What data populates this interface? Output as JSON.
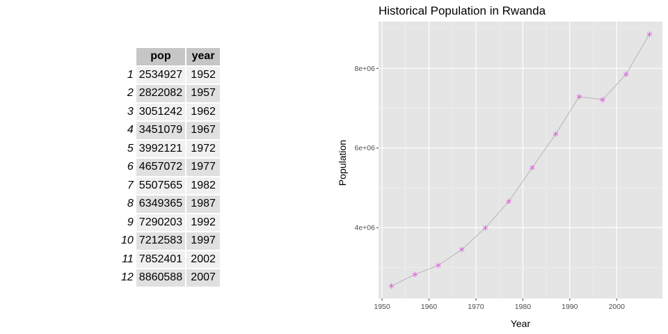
{
  "table": {
    "columns": [
      "pop",
      "year"
    ],
    "rows": [
      {
        "id": "1",
        "pop": "2534927",
        "year": "1952"
      },
      {
        "id": "2",
        "pop": "2822082",
        "year": "1957"
      },
      {
        "id": "3",
        "pop": "3051242",
        "year": "1962"
      },
      {
        "id": "4",
        "pop": "3451079",
        "year": "1967"
      },
      {
        "id": "5",
        "pop": "3992121",
        "year": "1972"
      },
      {
        "id": "6",
        "pop": "4657072",
        "year": "1977"
      },
      {
        "id": "7",
        "pop": "5507565",
        "year": "1982"
      },
      {
        "id": "8",
        "pop": "6349365",
        "year": "1987"
      },
      {
        "id": "9",
        "pop": "7290203",
        "year": "1992"
      },
      {
        "id": "10",
        "pop": "7212583",
        "year": "1997"
      },
      {
        "id": "11",
        "pop": "7852401",
        "year": "2002"
      },
      {
        "id": "12",
        "pop": "8860588",
        "year": "2007"
      }
    ]
  },
  "chart_data": {
    "type": "line",
    "title": "Historical Population in Rwanda",
    "xlabel": "Year",
    "ylabel": "Population",
    "x": [
      1952,
      1957,
      1962,
      1967,
      1972,
      1977,
      1982,
      1987,
      1992,
      1997,
      2002,
      2007
    ],
    "y": [
      2534927,
      2822082,
      3051242,
      3451079,
      3992121,
      4657072,
      5507565,
      6349365,
      7290203,
      7212583,
      7852401,
      8860588
    ],
    "xlim": [
      1949.25,
      2009.75
    ],
    "ylim": [
      2218644,
      9176871
    ],
    "x_ticks": [
      1950,
      1960,
      1970,
      1980,
      1990,
      2000
    ],
    "x_tick_labels": [
      "1950",
      "1960",
      "1970",
      "1980",
      "1990",
      "2000"
    ],
    "y_ticks": [
      4000000,
      6000000,
      8000000
    ],
    "y_tick_labels": [
      "4e+06",
      "6e+06",
      "8e+06"
    ],
    "grid": true,
    "panel_color": "#e5e5e5",
    "line_color": "#bdbdbd",
    "point_color": "#e066e0",
    "point_shape": "asterisk"
  }
}
